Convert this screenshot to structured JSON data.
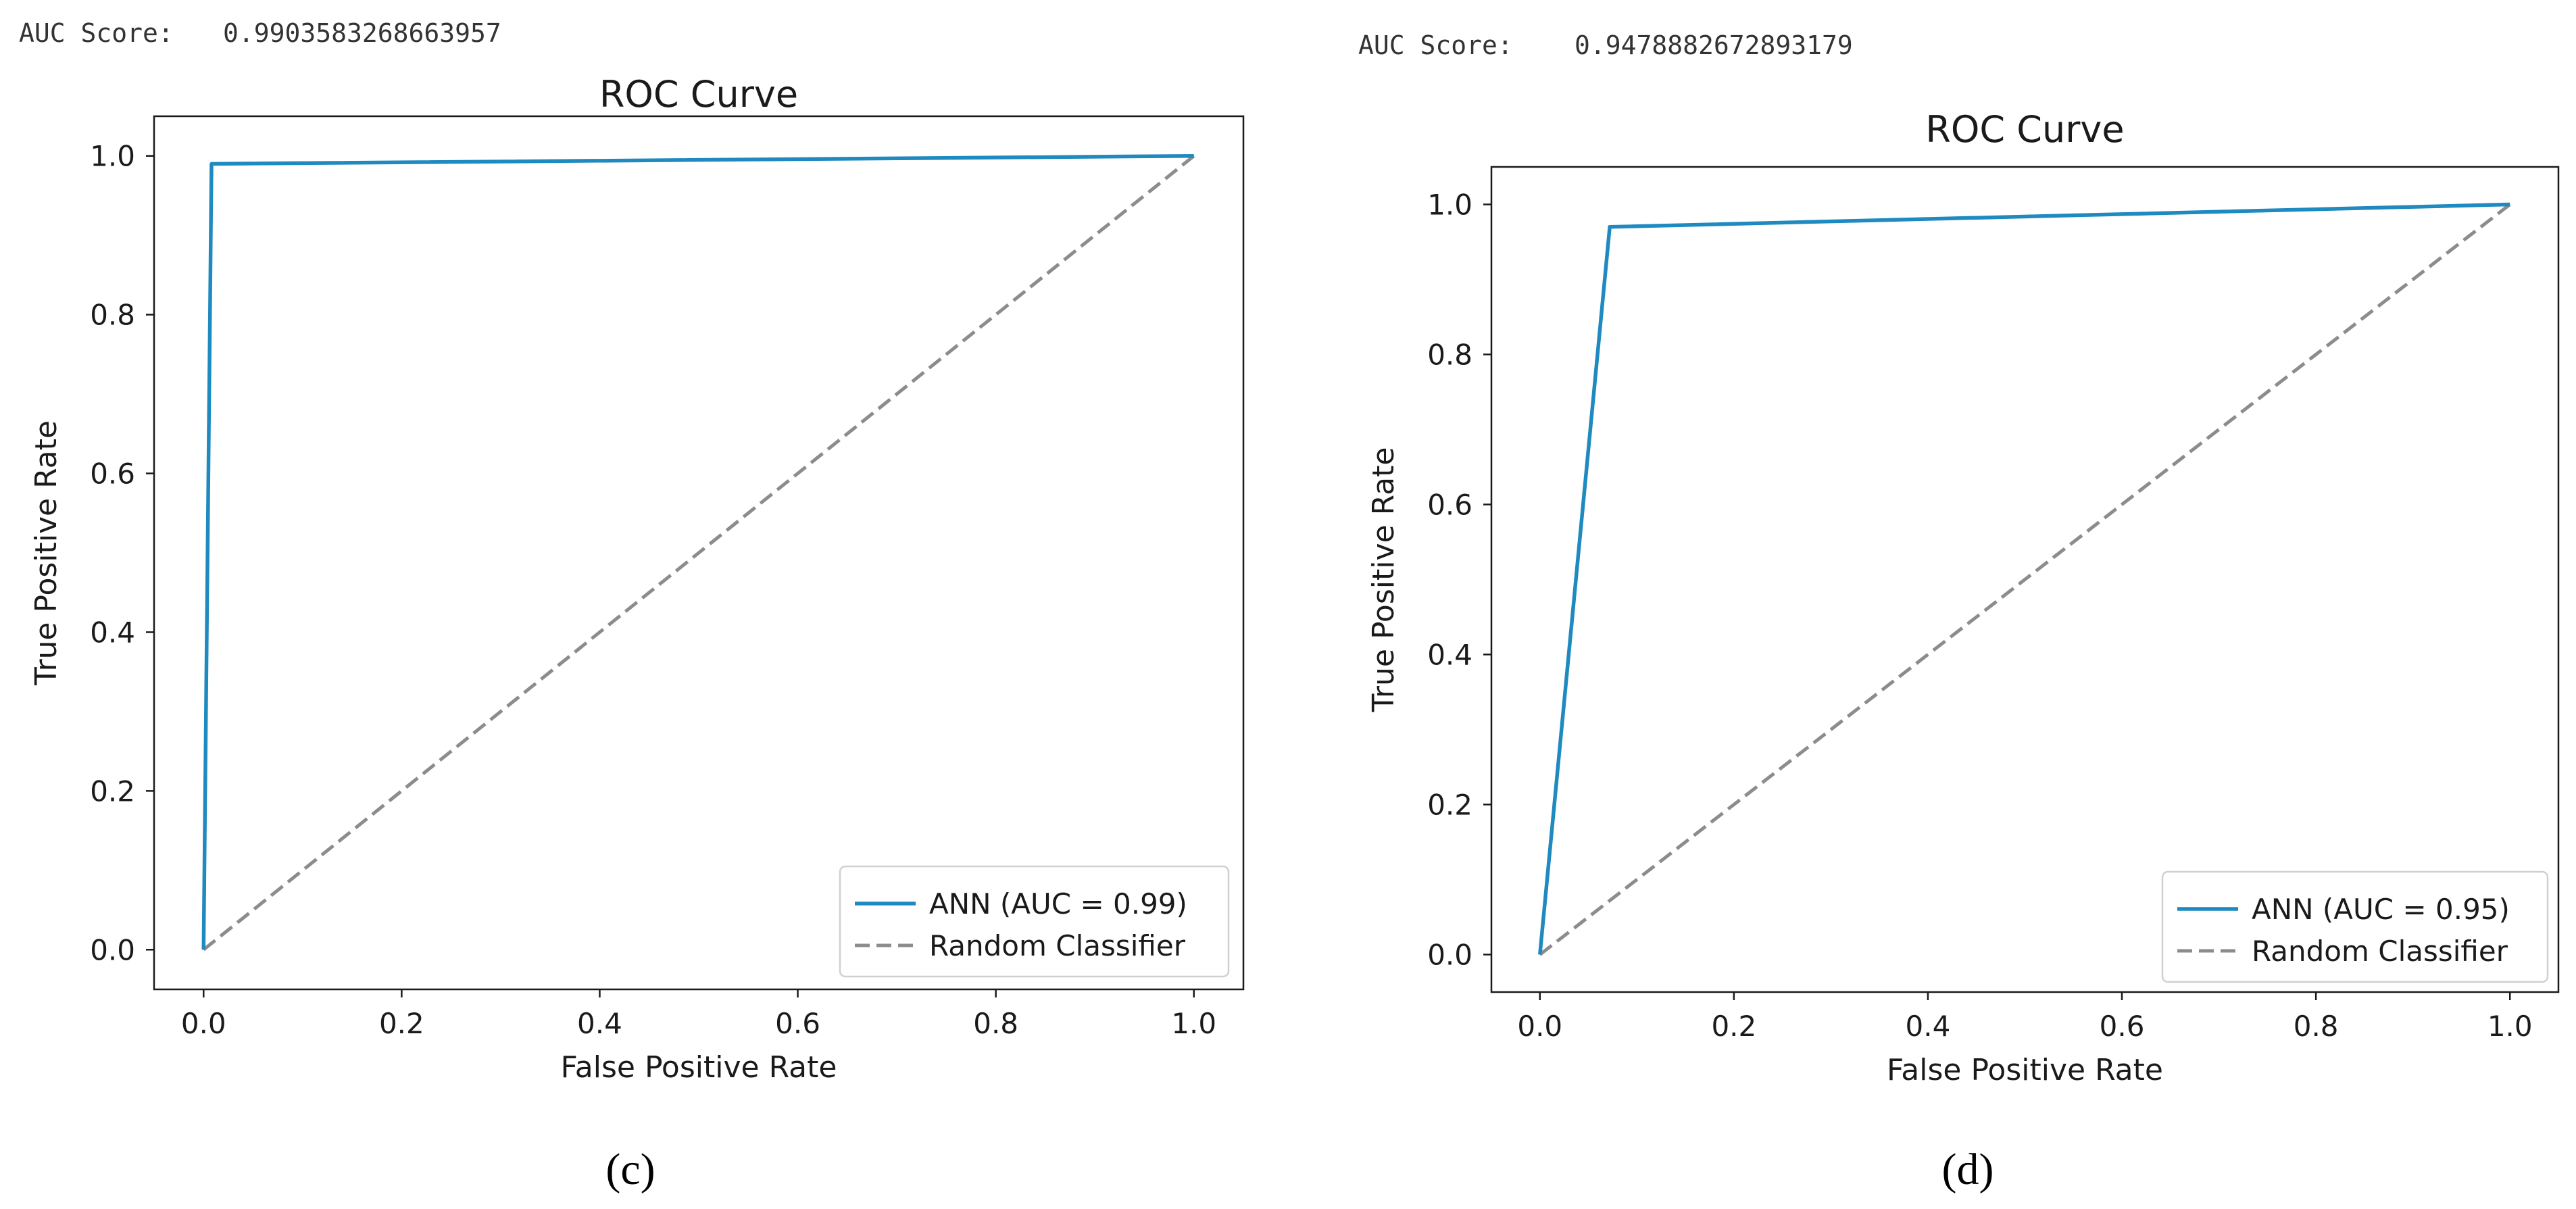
{
  "chart_data": [
    {
      "type": "line",
      "auc_prefix": "AUC Score:",
      "auc_score": "0.9903583268663957",
      "title": "ROC Curve",
      "xlabel": "False Positive Rate",
      "ylabel": "True Positive Rate",
      "xlim": [
        -0.05,
        1.05
      ],
      "ylim": [
        -0.05,
        1.05
      ],
      "xticks": [
        "0.0",
        "0.2",
        "0.4",
        "0.6",
        "0.8",
        "1.0"
      ],
      "yticks": [
        "0.0",
        "0.2",
        "0.4",
        "0.6",
        "0.8",
        "1.0"
      ],
      "legend_position": "lower-right",
      "series": [
        {
          "name": "ANN (AUC = 0.99)",
          "style": "solid",
          "color": "#1f8ac0",
          "x": [
            0.0,
            0.008,
            1.0
          ],
          "y": [
            0.0,
            0.99,
            1.0
          ]
        },
        {
          "name": "Random Classifier",
          "style": "dashed",
          "color": "#8c8c8c",
          "x": [
            0.0,
            1.0
          ],
          "y": [
            0.0,
            1.0
          ]
        }
      ],
      "caption": "(c)"
    },
    {
      "type": "line",
      "auc_prefix": "AUC Score:",
      "auc_score": "0.9478882672893179",
      "title": "ROC Curve",
      "xlabel": "False Positive Rate",
      "ylabel": "True Positive Rate",
      "xlim": [
        -0.05,
        1.05
      ],
      "ylim": [
        -0.05,
        1.05
      ],
      "xticks": [
        "0.0",
        "0.2",
        "0.4",
        "0.6",
        "0.8",
        "1.0"
      ],
      "yticks": [
        "0.0",
        "0.2",
        "0.4",
        "0.6",
        "0.8",
        "1.0"
      ],
      "legend_position": "lower-right",
      "series": [
        {
          "name": "ANN (AUC = 0.95)",
          "style": "solid",
          "color": "#1f8ac0",
          "x": [
            0.0,
            0.072,
            1.0
          ],
          "y": [
            0.0,
            0.97,
            1.0
          ]
        },
        {
          "name": "Random Classifier",
          "style": "dashed",
          "color": "#8c8c8c",
          "x": [
            0.0,
            1.0
          ],
          "y": [
            0.0,
            1.0
          ]
        }
      ],
      "caption": "(d)"
    }
  ]
}
